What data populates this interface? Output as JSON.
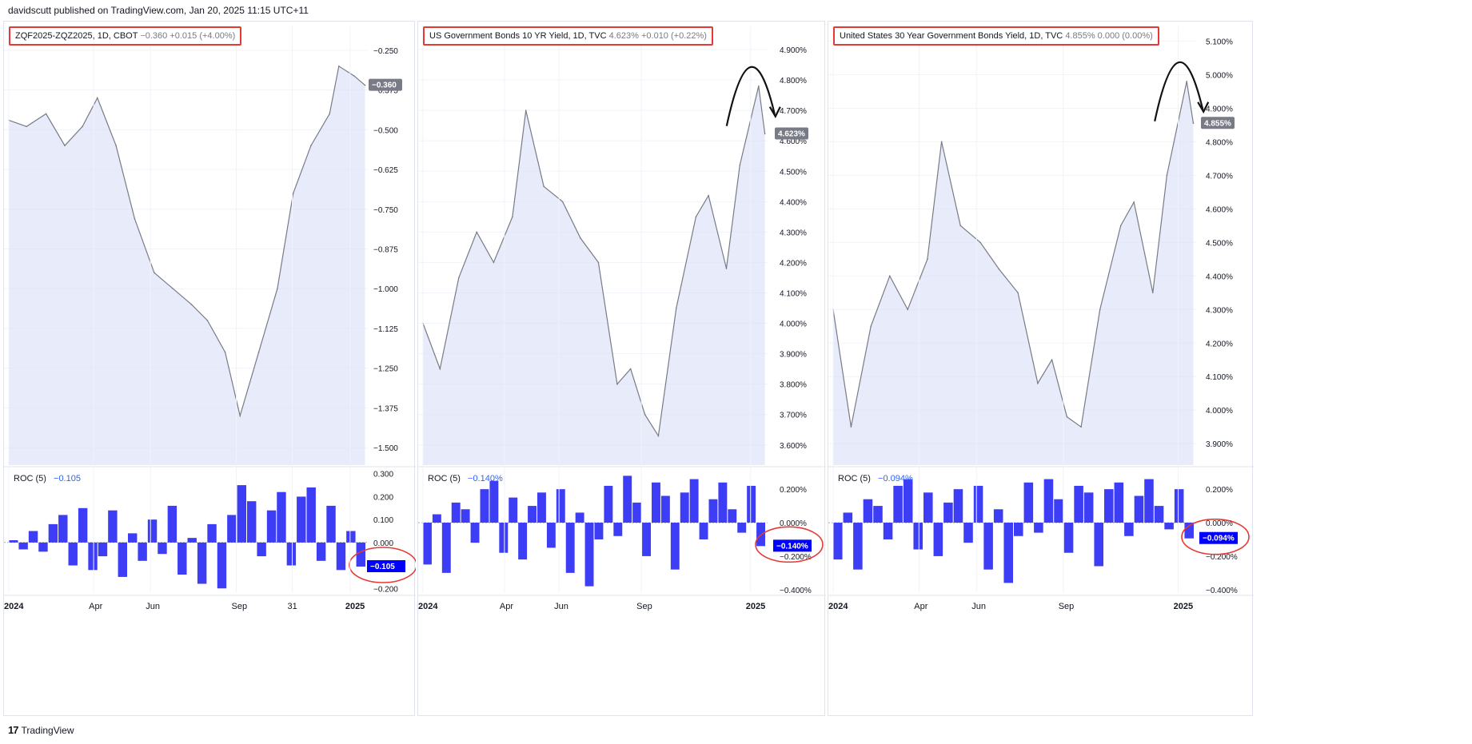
{
  "header": {
    "publisher": "davidscutt published on TradingView.com, Jan 20, 2025 11:15 UTC+11"
  },
  "footer": {
    "logo": "17",
    "brand": "TradingView"
  },
  "colors": {
    "price_line": "#787b86",
    "area_fill": "#d6dcf5",
    "roc_bar": "#3d3df5",
    "roc_label": "#0000ff",
    "price_label": "#787b86",
    "annotation_red": "#e53935"
  },
  "chart_data": [
    {
      "type": "area",
      "legend": {
        "main": "ZQF2025-ZQZ2025, 1D, CBOT",
        "values": "−0.360  +0.015 (+4.00%)"
      },
      "last_label": "−0.360",
      "yticks": [
        "−0.250",
        "−0.375",
        "−0.500",
        "−0.625",
        "−0.750",
        "−0.875",
        "−1.000",
        "−1.125",
        "−1.250",
        "−1.375",
        "−1.500"
      ],
      "ylim": [
        -1.53,
        -0.2
      ],
      "x": [
        "2024-01-01",
        "2024-01-20",
        "2024-02-10",
        "2024-03-01",
        "2024-03-20",
        "2024-04-05",
        "2024-04-25",
        "2024-05-15",
        "2024-06-05",
        "2024-06-25",
        "2024-07-15",
        "2024-08-01",
        "2024-08-20",
        "2024-09-05",
        "2024-09-25",
        "2024-10-15",
        "2024-11-01",
        "2024-11-20",
        "2024-12-10",
        "2024-12-20",
        "2025-01-05",
        "2025-01-17"
      ],
      "values": [
        -0.47,
        -0.49,
        -0.45,
        -0.55,
        -0.49,
        -0.4,
        -0.55,
        -0.78,
        -0.95,
        -1.0,
        -1.05,
        -1.1,
        -1.2,
        -1.4,
        -1.2,
        -1.0,
        -0.7,
        -0.55,
        -0.45,
        -0.3,
        -0.33,
        -0.36
      ],
      "xticks": [
        {
          "x": "2024-01-01",
          "label": "2024"
        },
        {
          "x": "2024-04-01",
          "label": "Apr"
        },
        {
          "x": "2024-06-01",
          "label": "Jun"
        },
        {
          "x": "2024-09-01",
          "label": "Sep"
        },
        {
          "x": "2024-10-31",
          "label": "31"
        },
        {
          "x": "2025-01-01",
          "label": "2025"
        }
      ],
      "roc": {
        "legend": "ROC (5)",
        "value_text": "−0.105",
        "last_label": "−0.105",
        "yticks": [
          "0.300",
          "0.200",
          "0.100",
          "0.000",
          "−0.100",
          "−0.200"
        ],
        "ylim": [
          -0.22,
          0.32
        ],
        "values": [
          0.01,
          -0.03,
          0.05,
          -0.04,
          0.08,
          0.12,
          -0.1,
          0.15,
          -0.12,
          -0.06,
          0.14,
          -0.15,
          0.04,
          -0.08,
          0.1,
          -0.05,
          0.16,
          -0.14,
          0.02,
          -0.18,
          0.08,
          -0.2,
          0.12,
          0.25,
          0.18,
          -0.06,
          0.14,
          0.22,
          -0.1,
          0.2,
          0.24,
          -0.08,
          0.16,
          -0.12,
          0.05,
          -0.105
        ]
      }
    },
    {
      "type": "area",
      "legend": {
        "main": "US Government Bonds 10 YR Yield, 1D, TVC",
        "values": "4.623%  +0.010 (+0.22%)"
      },
      "last_label": "4.623%",
      "yticks": [
        "4.900%",
        "4.800%",
        "4.700%",
        "4.600%",
        "4.500%",
        "4.400%",
        "4.300%",
        "4.200%",
        "4.100%",
        "4.000%",
        "3.900%",
        "3.800%",
        "3.700%",
        "3.600%"
      ],
      "ylim": [
        3.56,
        4.95
      ],
      "x": [
        "2024-01-01",
        "2024-01-20",
        "2024-02-10",
        "2024-03-01",
        "2024-03-20",
        "2024-04-10",
        "2024-04-25",
        "2024-05-15",
        "2024-06-05",
        "2024-06-25",
        "2024-07-15",
        "2024-08-05",
        "2024-08-20",
        "2024-09-05",
        "2024-09-20",
        "2024-10-10",
        "2024-11-01",
        "2024-11-15",
        "2024-12-05",
        "2024-12-20",
        "2025-01-10",
        "2025-01-17"
      ],
      "values": [
        4.0,
        3.85,
        4.15,
        4.3,
        4.2,
        4.35,
        4.7,
        4.45,
        4.4,
        4.28,
        4.2,
        3.8,
        3.85,
        3.7,
        3.63,
        4.05,
        4.35,
        4.42,
        4.18,
        4.52,
        4.78,
        4.623
      ],
      "xticks": [
        {
          "x": "2024-01-01",
          "label": "2024"
        },
        {
          "x": "2024-04-01",
          "label": "Apr"
        },
        {
          "x": "2024-06-01",
          "label": "Jun"
        },
        {
          "x": "2024-09-01",
          "label": "Sep"
        },
        {
          "x": "2025-01-01",
          "label": "2025"
        }
      ],
      "roc": {
        "legend": "ROC (5)",
        "value_text": "−0.140%",
        "last_label": "−0.140%",
        "yticks": [
          "0.200%",
          "0.000%",
          "−0.200%",
          "−0.400%"
        ],
        "ylim": [
          -0.42,
          0.32
        ],
        "values": [
          -0.25,
          0.05,
          -0.3,
          0.12,
          0.08,
          -0.12,
          0.2,
          0.25,
          -0.18,
          0.15,
          -0.22,
          0.1,
          0.18,
          -0.15,
          0.2,
          -0.3,
          0.06,
          -0.38,
          -0.1,
          0.22,
          -0.08,
          0.28,
          0.12,
          -0.2,
          0.24,
          0.16,
          -0.28,
          0.18,
          0.26,
          -0.1,
          0.14,
          0.24,
          0.08,
          -0.06,
          0.22,
          -0.14
        ]
      }
    },
    {
      "type": "area",
      "legend": {
        "main": "United States 30 Year Government Bonds Yield, 1D, TVC",
        "values": "4.855%  0.000 (0.00%)"
      },
      "last_label": "4.855%",
      "yticks": [
        "5.100%",
        "5.000%",
        "4.900%",
        "4.800%",
        "4.700%",
        "4.600%",
        "4.500%",
        "4.400%",
        "4.300%",
        "4.200%",
        "4.100%",
        "4.000%",
        "3.900%"
      ],
      "ylim": [
        3.86,
        5.12
      ],
      "x": [
        "2024-01-01",
        "2024-01-20",
        "2024-02-10",
        "2024-03-01",
        "2024-03-20",
        "2024-04-10",
        "2024-04-25",
        "2024-05-15",
        "2024-06-05",
        "2024-06-25",
        "2024-07-15",
        "2024-08-05",
        "2024-08-20",
        "2024-09-05",
        "2024-09-20",
        "2024-10-10",
        "2024-11-01",
        "2024-11-15",
        "2024-12-05",
        "2024-12-20",
        "2025-01-10",
        "2025-01-17"
      ],
      "values": [
        4.3,
        3.95,
        4.25,
        4.4,
        4.3,
        4.45,
        4.8,
        4.55,
        4.5,
        4.42,
        4.35,
        4.08,
        4.15,
        3.98,
        3.95,
        4.3,
        4.55,
        4.62,
        4.35,
        4.7,
        4.98,
        4.855
      ],
      "xticks": [
        {
          "x": "2024-01-01",
          "label": "2024"
        },
        {
          "x": "2024-04-01",
          "label": "Apr"
        },
        {
          "x": "2024-06-01",
          "label": "Jun"
        },
        {
          "x": "2024-09-01",
          "label": "Sep"
        },
        {
          "x": "2025-01-01",
          "label": "2025"
        }
      ],
      "roc": {
        "legend": "ROC (5)",
        "value_text": "−0.094%",
        "last_label": "−0.094%",
        "yticks": [
          "0.200%",
          "0.000%",
          "−0.200%",
          "−0.400%"
        ],
        "ylim": [
          -0.42,
          0.32
        ],
        "values": [
          -0.22,
          0.06,
          -0.28,
          0.14,
          0.1,
          -0.1,
          0.22,
          0.26,
          -0.16,
          0.18,
          -0.2,
          0.12,
          0.2,
          -0.12,
          0.22,
          -0.28,
          0.08,
          -0.36,
          -0.08,
          0.24,
          -0.06,
          0.26,
          0.14,
          -0.18,
          0.22,
          0.18,
          -0.26,
          0.2,
          0.24,
          -0.08,
          0.16,
          0.26,
          0.1,
          -0.04,
          0.2,
          -0.094
        ]
      }
    }
  ]
}
